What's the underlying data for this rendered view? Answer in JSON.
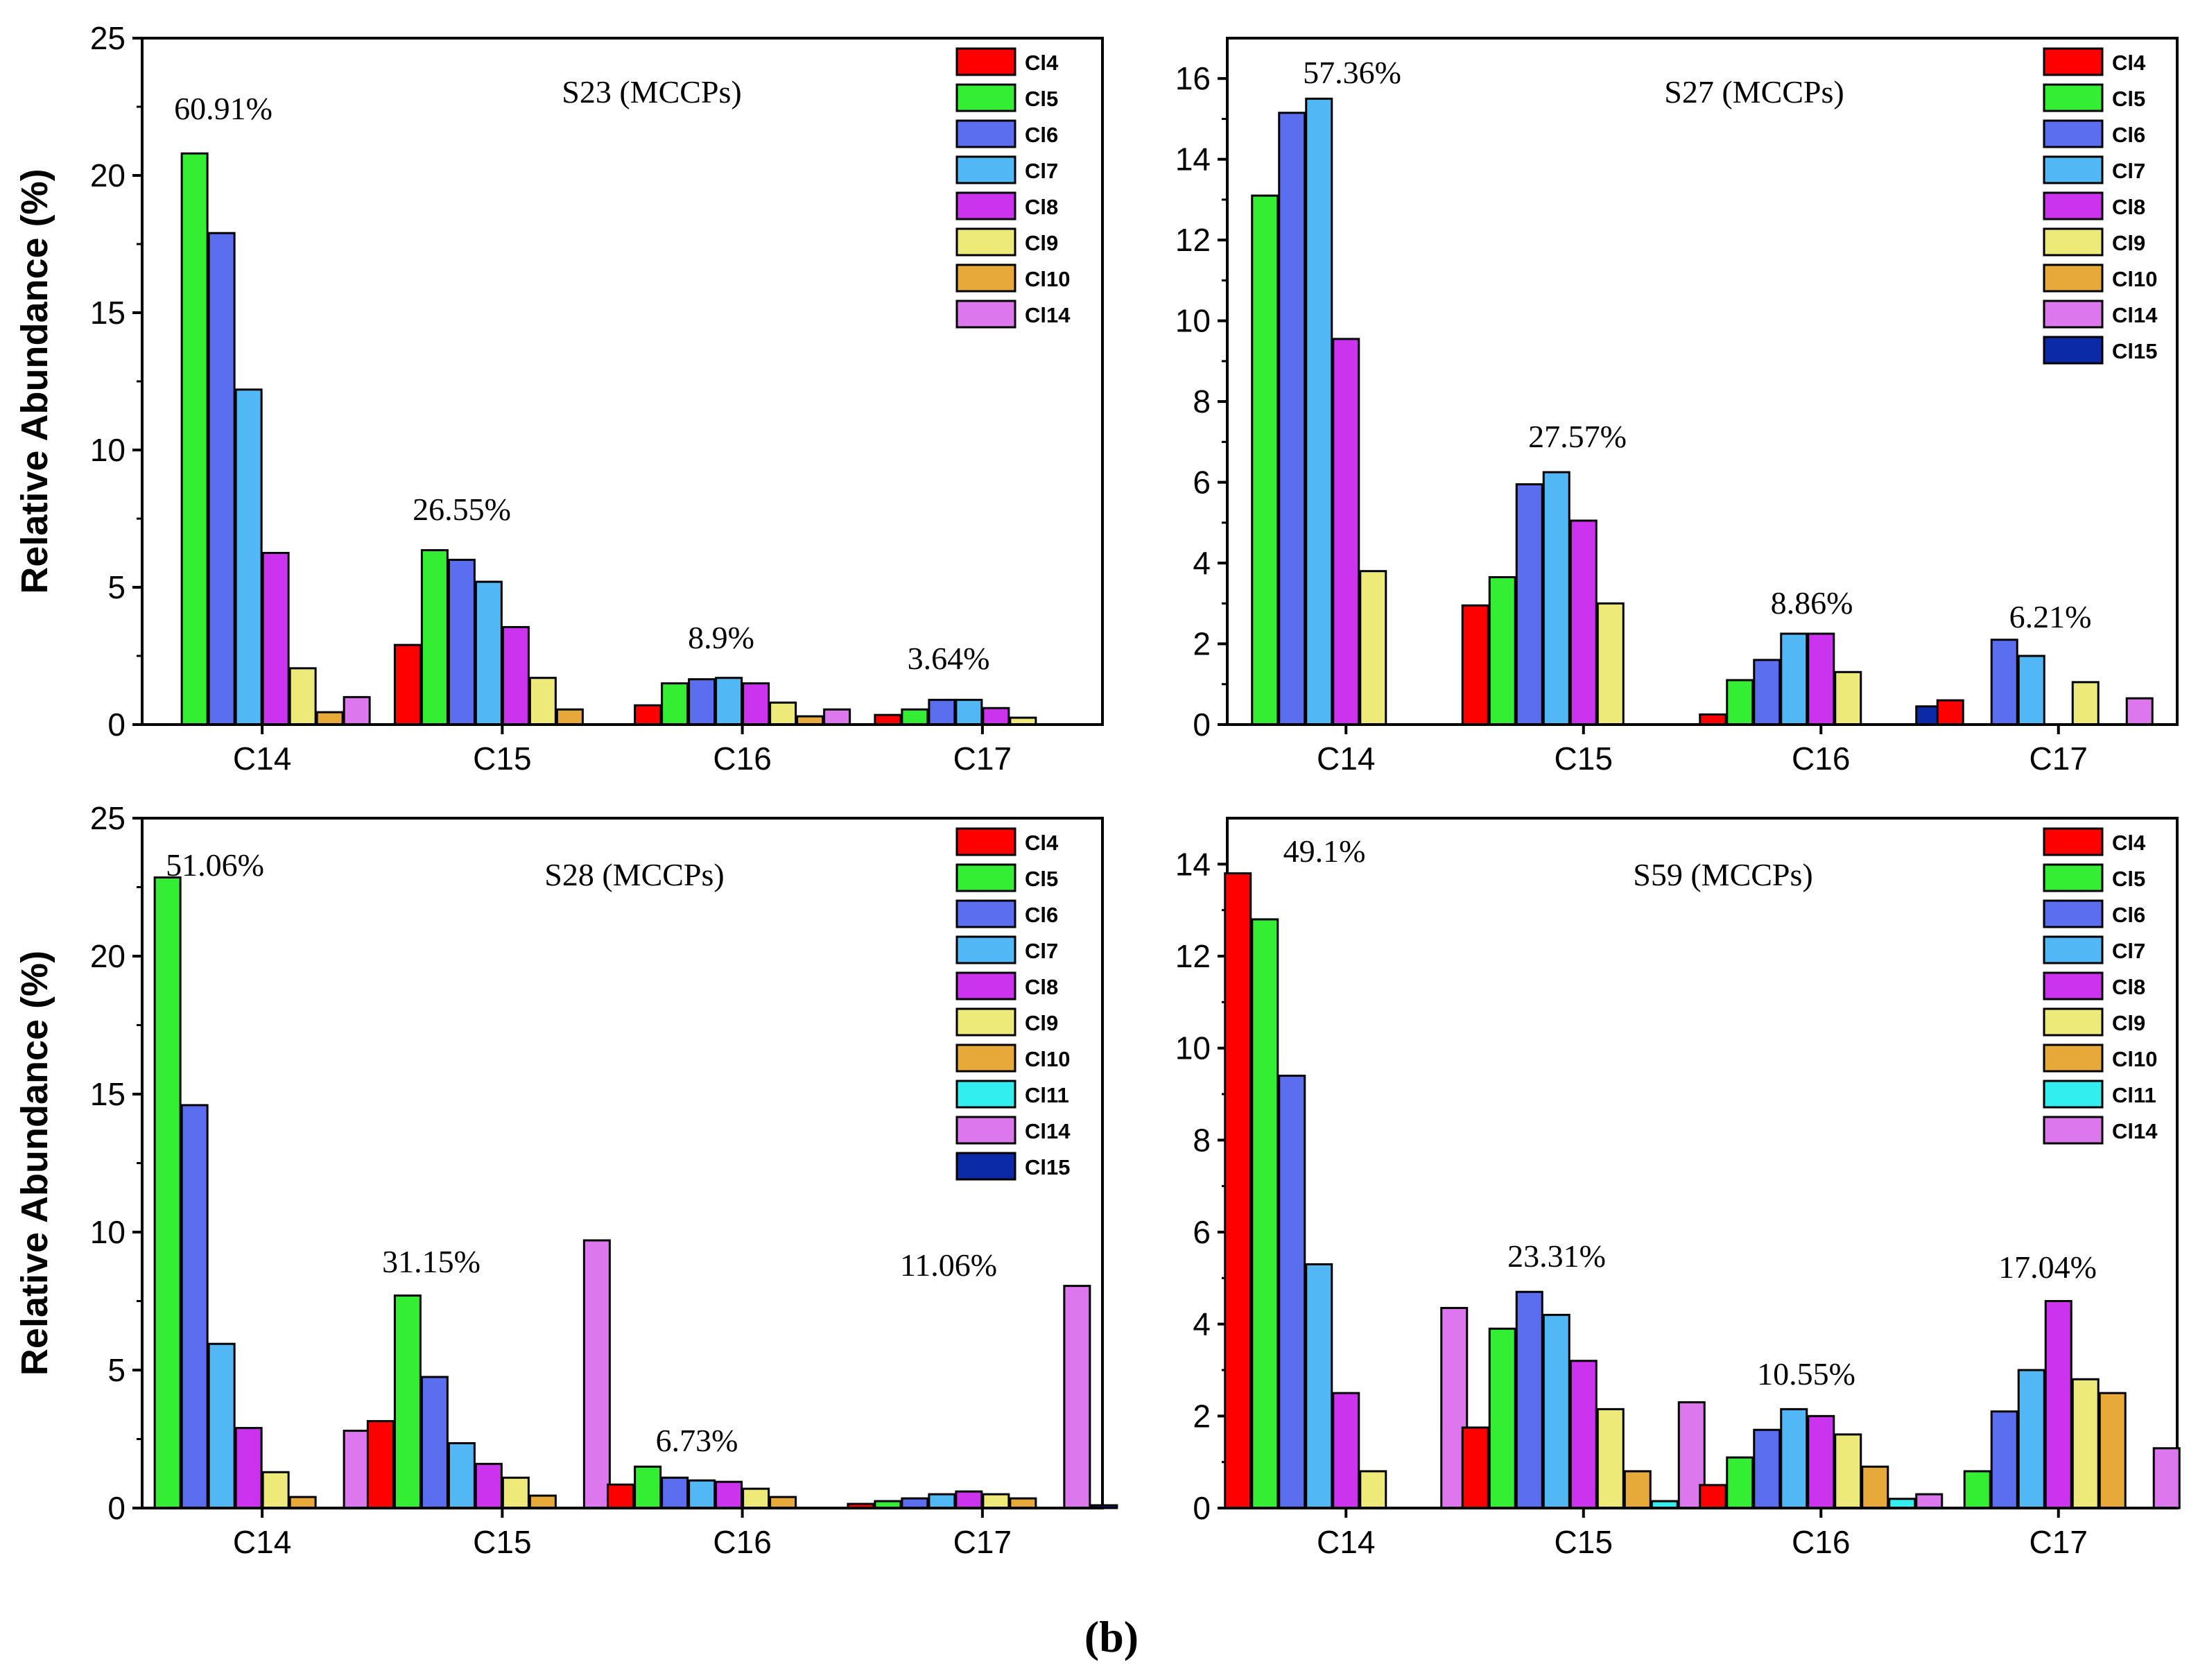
{
  "figure_label": "(b)",
  "colors": {
    "Cl4": "#ff0000",
    "Cl5": "#33ee33",
    "Cl6": "#5b6ef0",
    "Cl7": "#52b8f5",
    "Cl8": "#cc33ee",
    "Cl9": "#eeea7a",
    "Cl10": "#e6a93a",
    "Cl11": "#33eeee",
    "Cl14": "#dd77ee",
    "Cl15": "#0a2aa8"
  },
  "chart_data": [
    {
      "type": "bar",
      "title": "S23 (MCCPs)",
      "ylabel": "Relative Abundance (%)",
      "xlabel": "",
      "ylim": [
        0,
        25
      ],
      "yticks": [
        0,
        5,
        10,
        15,
        20,
        25
      ],
      "categories": [
        "C14",
        "C15",
        "C16",
        "C17"
      ],
      "legend": [
        "Cl4",
        "Cl5",
        "Cl6",
        "Cl7",
        "Cl8",
        "Cl9",
        "Cl10",
        "Cl14"
      ],
      "annotations": [
        "60.91%",
        "26.55%",
        "8.9%",
        "3.64%"
      ],
      "series": [
        {
          "name": "Cl4",
          "values": [
            0,
            2.9,
            0.7,
            0.35
          ]
        },
        {
          "name": "Cl5",
          "values": [
            20.8,
            6.35,
            1.5,
            0.55
          ]
        },
        {
          "name": "Cl6",
          "values": [
            17.9,
            6.0,
            1.65,
            0.9
          ]
        },
        {
          "name": "Cl7",
          "values": [
            12.2,
            5.2,
            1.7,
            0.9
          ]
        },
        {
          "name": "Cl8",
          "values": [
            6.25,
            3.55,
            1.5,
            0.6
          ]
        },
        {
          "name": "Cl9",
          "values": [
            2.05,
            1.7,
            0.8,
            0.25
          ]
        },
        {
          "name": "Cl10",
          "values": [
            0.45,
            0.55,
            0.3,
            0
          ]
        },
        {
          "name": "Cl14",
          "values": [
            1.0,
            0,
            0.55,
            0
          ]
        }
      ]
    },
    {
      "type": "bar",
      "title": "S27 (MCCPs)",
      "ylabel": "",
      "xlabel": "",
      "ylim": [
        0,
        17
      ],
      "yticks": [
        0,
        2,
        4,
        6,
        8,
        10,
        12,
        14,
        16
      ],
      "categories": [
        "C14",
        "C15",
        "C16",
        "C17"
      ],
      "legend": [
        "Cl4",
        "Cl5",
        "Cl6",
        "Cl7",
        "Cl8",
        "Cl9",
        "Cl10",
        "Cl14",
        "Cl15"
      ],
      "annotations": [
        "57.36%",
        "27.57%",
        "8.86%",
        "6.21%"
      ],
      "series": [
        {
          "name": "Cl4",
          "values": [
            0,
            2.95,
            0.25,
            0.6
          ]
        },
        {
          "name": "Cl5",
          "values": [
            13.1,
            3.65,
            1.1,
            0
          ]
        },
        {
          "name": "Cl6",
          "values": [
            15.15,
            5.95,
            1.6,
            2.1
          ]
        },
        {
          "name": "Cl7",
          "values": [
            15.5,
            6.25,
            2.25,
            1.7
          ]
        },
        {
          "name": "Cl8",
          "values": [
            9.55,
            5.05,
            2.25,
            0
          ]
        },
        {
          "name": "Cl9",
          "values": [
            3.8,
            3.0,
            1.3,
            1.05
          ]
        },
        {
          "name": "Cl10",
          "values": [
            0,
            0,
            0,
            0
          ]
        },
        {
          "name": "Cl14",
          "values": [
            0,
            0,
            0,
            0.65
          ]
        },
        {
          "name": "Cl15",
          "values": [
            0,
            0,
            0.45,
            0
          ]
        }
      ]
    },
    {
      "type": "bar",
      "title": "S28 (MCCPs)",
      "ylabel": "Relative Abundance (%)",
      "xlabel": "",
      "ylim": [
        0,
        25
      ],
      "yticks": [
        0,
        5,
        10,
        15,
        20,
        25
      ],
      "categories": [
        "C14",
        "C15",
        "C16",
        "C17"
      ],
      "legend": [
        "Cl4",
        "Cl5",
        "Cl6",
        "Cl7",
        "Cl8",
        "Cl9",
        "Cl10",
        "Cl11",
        "Cl14",
        "Cl15"
      ],
      "annotations": [
        "51.06%",
        "31.15%",
        "6.73%",
        "11.06%"
      ],
      "series": [
        {
          "name": "Cl4",
          "values": [
            0,
            3.15,
            0.85,
            0.15
          ]
        },
        {
          "name": "Cl5",
          "values": [
            22.85,
            7.7,
            1.5,
            0.25
          ]
        },
        {
          "name": "Cl6",
          "values": [
            14.6,
            4.75,
            1.1,
            0.35
          ]
        },
        {
          "name": "Cl7",
          "values": [
            5.95,
            2.35,
            1.0,
            0.5
          ]
        },
        {
          "name": "Cl8",
          "values": [
            2.9,
            1.6,
            0.95,
            0.6
          ]
        },
        {
          "name": "Cl9",
          "values": [
            1.3,
            1.1,
            0.7,
            0.5
          ]
        },
        {
          "name": "Cl10",
          "values": [
            0.4,
            0.45,
            0.4,
            0.35
          ]
        },
        {
          "name": "Cl11",
          "values": [
            0,
            0,
            0,
            0
          ]
        },
        {
          "name": "Cl14",
          "values": [
            2.8,
            9.7,
            0,
            8.05
          ]
        },
        {
          "name": "Cl15",
          "values": [
            0,
            0.15,
            0.1,
            0.1
          ]
        }
      ]
    },
    {
      "type": "bar",
      "title": "S59 (MCCPs)",
      "ylabel": "",
      "xlabel": "",
      "ylim": [
        0,
        15
      ],
      "yticks": [
        0,
        2,
        4,
        6,
        8,
        10,
        12,
        14
      ],
      "categories": [
        "C14",
        "C15",
        "C16",
        "C17"
      ],
      "legend": [
        "Cl4",
        "Cl5",
        "Cl6",
        "Cl7",
        "Cl8",
        "Cl9",
        "Cl10",
        "Cl11",
        "Cl14"
      ],
      "annotations": [
        "49.1%",
        "23.31%",
        "10.55%",
        "17.04%"
      ],
      "series": [
        {
          "name": "Cl4",
          "values": [
            13.8,
            1.75,
            0.5,
            0
          ]
        },
        {
          "name": "Cl5",
          "values": [
            12.8,
            3.9,
            1.1,
            0.8
          ]
        },
        {
          "name": "Cl6",
          "values": [
            9.4,
            4.7,
            1.7,
            2.1
          ]
        },
        {
          "name": "Cl7",
          "values": [
            5.3,
            4.2,
            2.15,
            3.0
          ]
        },
        {
          "name": "Cl8",
          "values": [
            2.5,
            3.2,
            2.0,
            4.5
          ]
        },
        {
          "name": "Cl9",
          "values": [
            0.8,
            2.15,
            1.6,
            2.8
          ]
        },
        {
          "name": "Cl10",
          "values": [
            0,
            0.8,
            0.9,
            2.5
          ]
        },
        {
          "name": "Cl11",
          "values": [
            0,
            0.15,
            0.2,
            0
          ]
        },
        {
          "name": "Cl14",
          "values": [
            4.35,
            2.3,
            0.3,
            1.3
          ]
        }
      ]
    }
  ]
}
